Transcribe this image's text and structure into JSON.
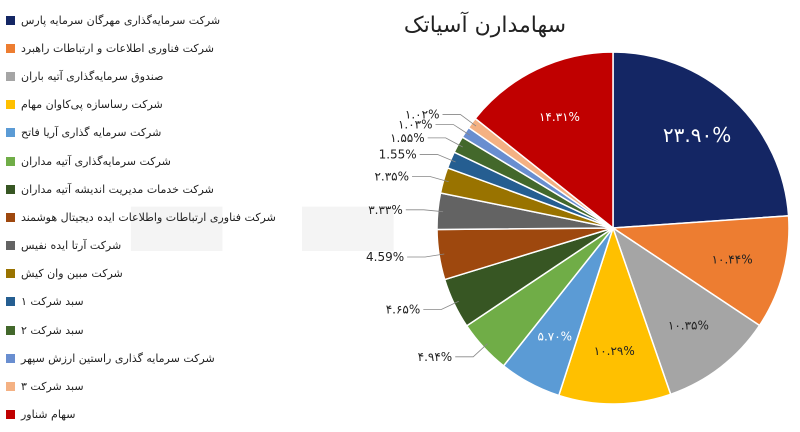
{
  "chart_data": {
    "type": "pie",
    "title": "سهامدارن آسیاتک",
    "legend_position": "left",
    "slices": [
      {
        "label": "شرکت سرمایه‌گذاری مهرگان سرمایه پارس",
        "value": 23.9,
        "value_label": "۲۳.۹۰%",
        "color": "#142664"
      },
      {
        "label": "شرکت فناوری اطلاعات و ارتباطات راهبرد",
        "value": 10.44,
        "value_label": "۱۰.۴۴%",
        "color": "#ED7D31"
      },
      {
        "label": "صندوق سرمایه‌گذاری آتیه باران",
        "value": 10.35,
        "value_label": "۱۰.۳۵%",
        "color": "#A5A5A5"
      },
      {
        "label": "شرکت رساسازه پی‌کاوان مهام",
        "value": 10.29,
        "value_label": "۱۰.۲۹%",
        "color": "#FFC000"
      },
      {
        "label": "شرکت سرمایه گذاری آریا فاتح",
        "value": 5.7,
        "value_label": "۵.۷۰%",
        "color": "#5B9BD5"
      },
      {
        "label": "شرکت سرمایه‌گذاری آتیه مداران",
        "value": 4.94,
        "value_label": "۴.۹۴%",
        "color": "#70AD47"
      },
      {
        "label": "شرکت خدمات مدیریت اندیشه آتیه مداران",
        "value": 4.65,
        "value_label": "۴.۶۵%",
        "color": "#375623"
      },
      {
        "label": "شرکت فناوری ارتباطات واطلاعات ایده دیجیتال هوشمند",
        "value": 4.59,
        "value_label": "4.59%",
        "color": "#9E480E"
      },
      {
        "label": "شرکت آرتا ایده نفیس",
        "value": 3.33,
        "value_label": "۳.۳۳%",
        "color": "#636363"
      },
      {
        "label": "شرکت مبین وان کیش",
        "value": 2.35,
        "value_label": "۲.۳۵%",
        "color": "#997300"
      },
      {
        "label": "سبد شرکت ۱",
        "value": 1.55,
        "value_label": "1.55%",
        "color": "#255E91"
      },
      {
        "label": "سبد شرکت ۲",
        "value": 1.55,
        "value_label": "۱.۵۵%",
        "color": "#43682B"
      },
      {
        "label": "شرکت سرمایه گذاری راستین ارزش سپهر",
        "value": 1.03,
        "value_label": "۱.۰۳%",
        "color": "#698ED0"
      },
      {
        "label": "سبد شرکت ۳",
        "value": 1.02,
        "value_label": "۱.۰۲%",
        "color": "#F4B183"
      },
      {
        "label": "سهام شناور",
        "value": 14.31,
        "value_label": "۱۴.۳۱%",
        "color": "#C00000"
      }
    ]
  }
}
